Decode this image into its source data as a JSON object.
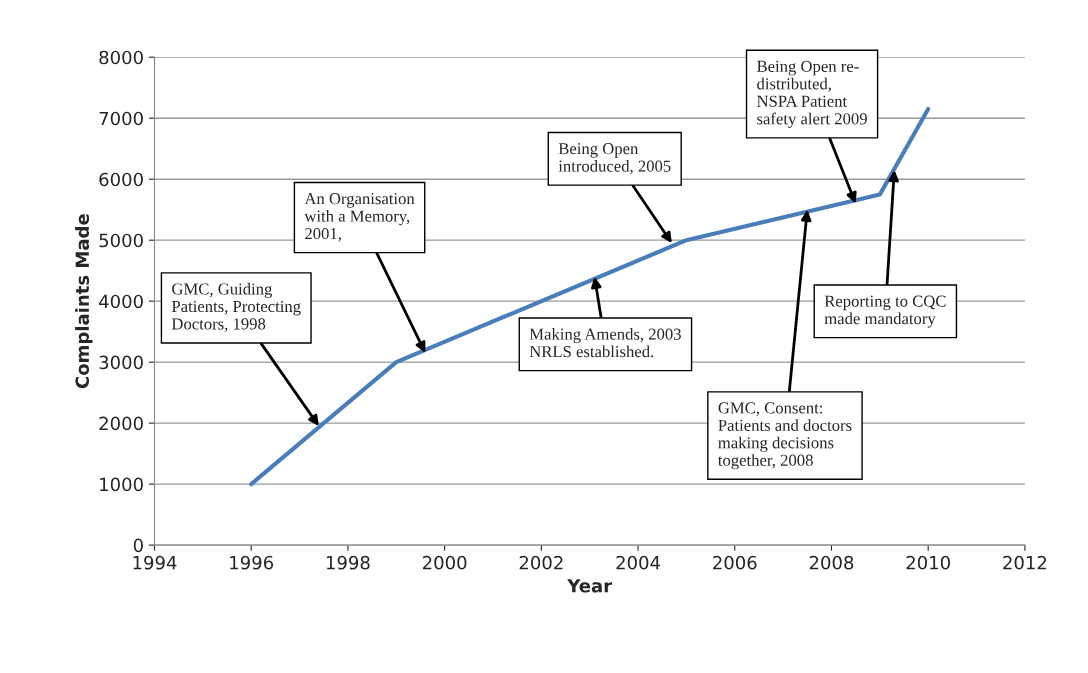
{
  "chart_data": {
    "type": "line",
    "xlabel": "Year",
    "ylabel": "Complaints Made",
    "series": [
      {
        "color": "#4a7ebb",
        "x": [
          1996,
          1999,
          2005,
          2009,
          2010
        ],
        "values": [
          1000,
          3000,
          5000,
          5750,
          7150
        ]
      }
    ],
    "xlim": [
      1994,
      2012
    ],
    "xticks": [
      1994,
      1996,
      1998,
      2000,
      2002,
      2004,
      2006,
      2008,
      2010,
      2012
    ],
    "ylim": [
      0,
      8000
    ],
    "yticks": [
      0,
      1000,
      2000,
      3000,
      4000,
      5000,
      6000,
      7000,
      8000
    ],
    "grid": "y",
    "legend": false,
    "marker": "none",
    "line_style": "solid",
    "annotations": [
      {
        "text": "GMC, Guiding\nPatients, Protecting\nDoctors, 1998",
        "x": 1997.4,
        "y": 1950
      },
      {
        "text": "An Organisation\nwith a Memory,\n2001,",
        "x": 1999.6,
        "y": 3150
      },
      {
        "text": "Making Amends, 2003\nNRLS established.",
        "x": 2003.1,
        "y": 4400
      },
      {
        "text": "Being Open\nintroduced, 2005",
        "x": 2004.7,
        "y": 4950
      },
      {
        "text": "Being Open re-\ndistributed,\nNSPA Patient\nsafety alert 2009",
        "x": 2008.5,
        "y": 5600
      },
      {
        "text": "GMC, Consent:\nPatients and doctors\nmaking decisions\ntogether, 2008",
        "x": 2007.5,
        "y": 5500
      },
      {
        "text": "Reporting to CQC\nmade mandatory",
        "x": 2009.3,
        "y": 6150
      }
    ]
  }
}
